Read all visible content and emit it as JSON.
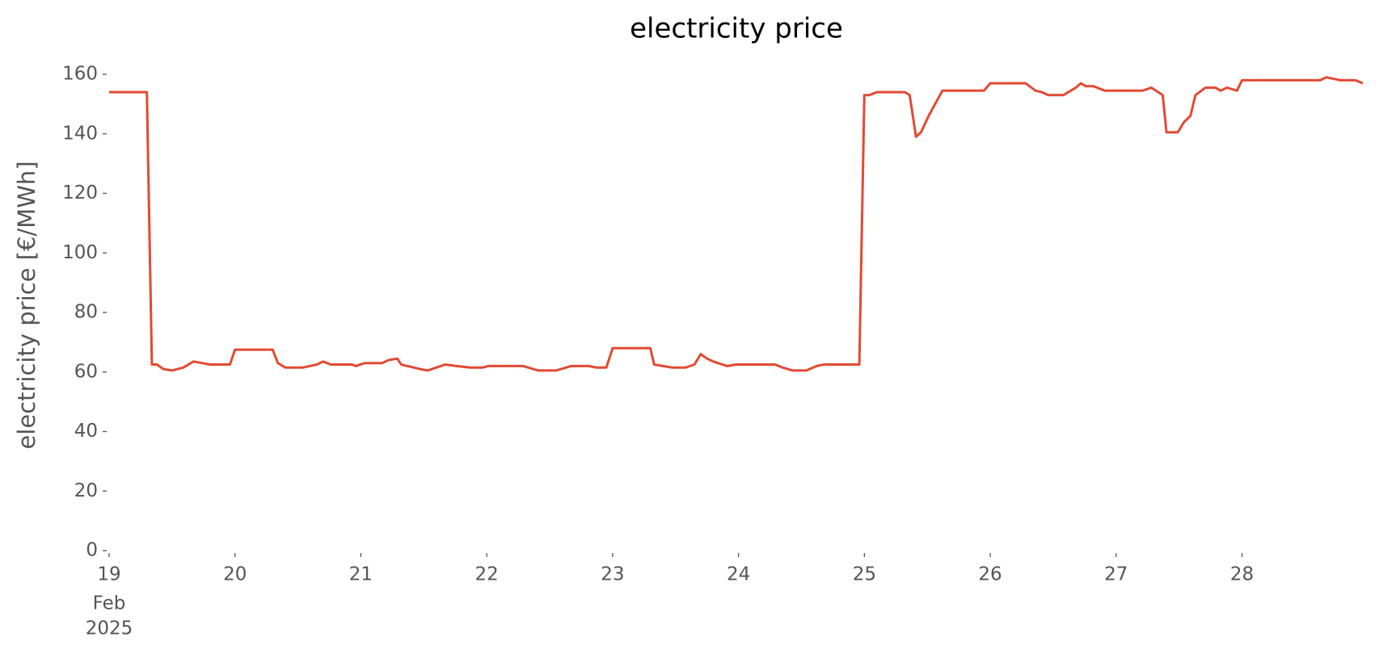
{
  "chart_data": {
    "type": "line",
    "title": "electricity price",
    "ylabel": "electricity price [€/MWh]",
    "x": [
      19.0,
      19.3,
      19.34,
      19.38,
      19.43,
      19.5,
      19.59,
      19.67,
      19.74,
      19.8,
      19.96,
      20.0,
      20.3,
      20.34,
      20.4,
      20.54,
      20.65,
      20.7,
      20.76,
      20.93,
      20.96,
      21.03,
      21.17,
      21.22,
      21.29,
      21.32,
      21.47,
      21.53,
      21.6,
      21.67,
      21.76,
      21.87,
      21.97,
      22.01,
      22.29,
      22.41,
      22.55,
      22.67,
      22.81,
      22.87,
      22.95,
      23.0,
      23.3,
      23.33,
      23.4,
      23.47,
      23.58,
      23.65,
      23.7,
      23.75,
      23.8,
      23.91,
      23.98,
      24.29,
      24.35,
      24.43,
      24.54,
      24.62,
      24.68,
      24.96,
      25.0,
      25.04,
      25.1,
      25.32,
      25.36,
      25.41,
      25.45,
      25.51,
      25.62,
      25.95,
      26.0,
      26.28,
      26.36,
      26.41,
      26.46,
      26.58,
      26.68,
      26.72,
      26.76,
      26.82,
      26.91,
      27.21,
      27.28,
      27.37,
      27.4,
      27.49,
      27.54,
      27.59,
      27.63,
      27.71,
      27.79,
      27.83,
      27.88,
      27.92,
      27.96,
      28.0,
      28.62,
      28.67,
      28.78,
      28.9,
      28.96
    ],
    "series": [
      {
        "name": "electricity price",
        "color": "#e24a33",
        "values": [
          154,
          154,
          62.5,
          62.5,
          61,
          60.5,
          61.5,
          63.5,
          63,
          62.5,
          62.5,
          67.5,
          67.5,
          63,
          61.5,
          61.5,
          62.5,
          63.5,
          62.5,
          62.5,
          62,
          63,
          63,
          64,
          64.5,
          62.5,
          61,
          60.5,
          61.5,
          62.5,
          62,
          61.5,
          61.5,
          62,
          62,
          60.5,
          60.5,
          62,
          62,
          61.5,
          61.5,
          68,
          68,
          62.5,
          62,
          61.5,
          61.5,
          62.5,
          66,
          64.5,
          63.5,
          62,
          62.5,
          62.5,
          61.5,
          60.5,
          60.5,
          62,
          62.5,
          62.5,
          153,
          153,
          154,
          154,
          153,
          139,
          140.5,
          146,
          154.5,
          154.5,
          157,
          157,
          154.5,
          154,
          153,
          153,
          155.5,
          157,
          156,
          156,
          154.5,
          154.5,
          155.5,
          153,
          140.5,
          140.5,
          144,
          146,
          153,
          155.5,
          155.5,
          154.5,
          155.5,
          155,
          154.5,
          158,
          158,
          159,
          158,
          158,
          157
        ]
      }
    ],
    "xlim": [
      19,
      28.96
    ],
    "xticks": [
      19,
      20,
      21,
      22,
      23,
      24,
      25,
      26,
      27,
      28
    ],
    "xtick_sublabels": [
      "Feb",
      "2025"
    ],
    "ylim": [
      0,
      160
    ],
    "yticks": [
      0,
      20,
      40,
      60,
      80,
      100,
      120,
      140,
      160
    ],
    "grid": false
  }
}
